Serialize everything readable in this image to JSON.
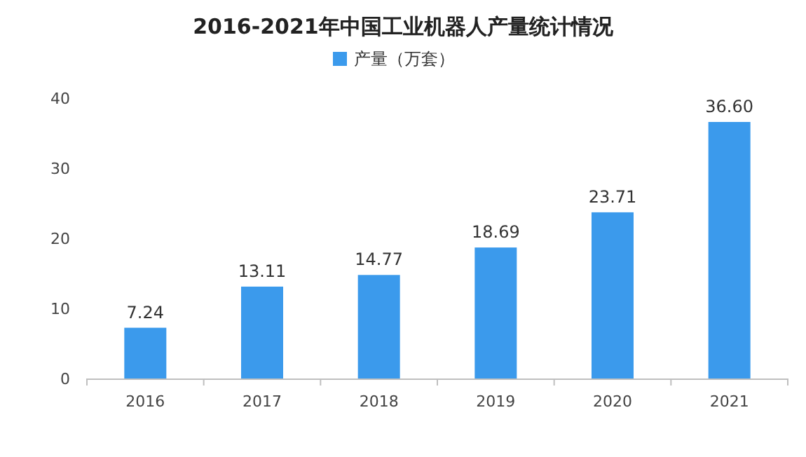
{
  "chart_data": {
    "type": "bar",
    "title": "2016-2021年中国工业机器人产量统计情况",
    "categories": [
      "2016",
      "2017",
      "2018",
      "2019",
      "2020",
      "2021"
    ],
    "series": [
      {
        "name": "产量（万套）",
        "color": "#3b9aec",
        "values": [
          7.24,
          13.11,
          14.77,
          18.69,
          23.71,
          36.6
        ]
      }
    ],
    "value_labels": [
      "7.24",
      "13.11",
      "14.77",
      "18.69",
      "23.71",
      "36.60"
    ],
    "ylim": [
      0,
      40
    ],
    "yticks": [
      0,
      10,
      20,
      30,
      40
    ],
    "grid": false,
    "legend": "top"
  }
}
